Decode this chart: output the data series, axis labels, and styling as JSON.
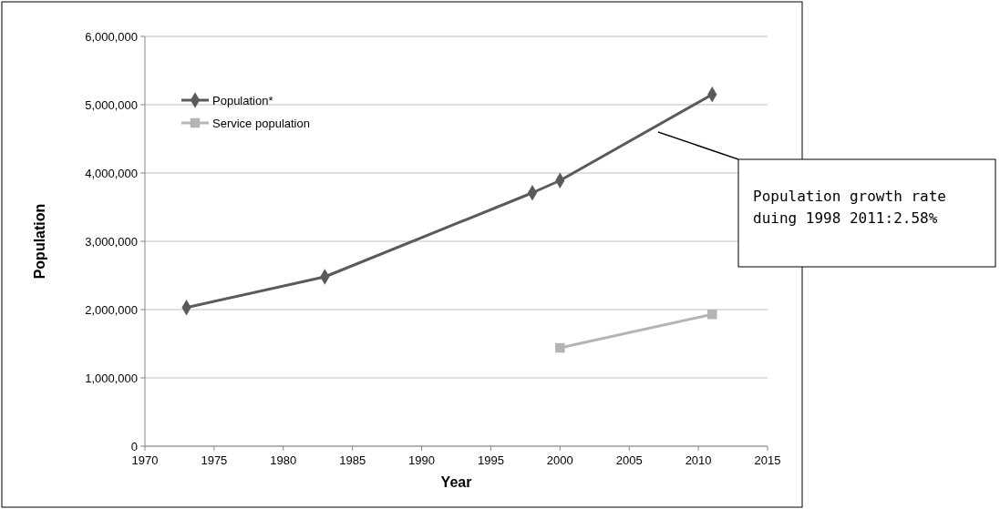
{
  "chart_data": {
    "type": "line",
    "xlabel": "Year",
    "ylabel": "Population",
    "xlim": [
      1970,
      2015
    ],
    "xticks": [
      1970,
      1975,
      1980,
      1985,
      1990,
      1995,
      2000,
      2005,
      2010,
      2015
    ],
    "ylim": [
      0,
      6000000
    ],
    "yticks": [
      {
        "value": 0,
        "label": "0"
      },
      {
        "value": 1000000,
        "label": "1,000,000"
      },
      {
        "value": 2000000,
        "label": "2,000,000"
      },
      {
        "value": 3000000,
        "label": "3,000,000"
      },
      {
        "value": 4000000,
        "label": "4,000,000"
      },
      {
        "value": 5000000,
        "label": "5,000,000"
      },
      {
        "value": 6000000,
        "label": "6,000,000"
      }
    ],
    "grid": "y",
    "legend": "top left",
    "series": [
      {
        "name": "Population*",
        "color": "#5a5a5a",
        "marker": "diamond",
        "x": [
          1973,
          1983,
          1998,
          2000,
          2011
        ],
        "values": [
          2030000,
          2480000,
          3710000,
          3890000,
          5150000
        ]
      },
      {
        "name": "Service population",
        "color": "#b4b4b4",
        "marker": "square",
        "x": [
          2000,
          2011
        ],
        "values": [
          1440000,
          1930000
        ]
      }
    ],
    "annotations": [
      "Population growth rate duing 1998 2011:2.58%"
    ]
  }
}
